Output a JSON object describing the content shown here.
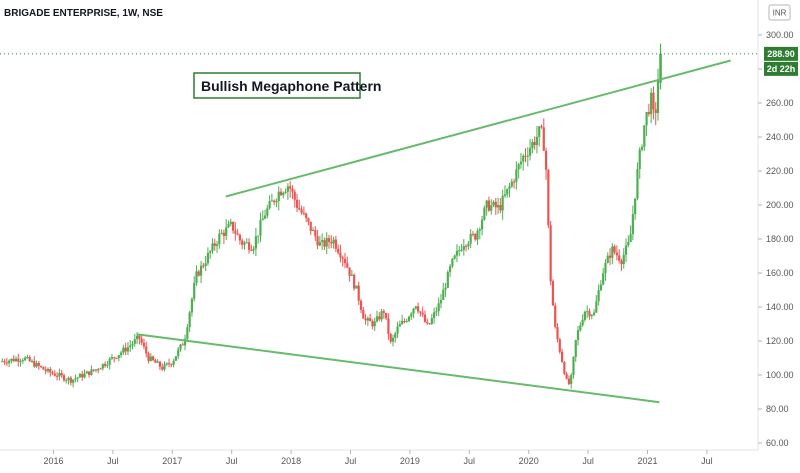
{
  "header": {
    "title": "BRIGADE ENTERPRISE, 1W, NSE"
  },
  "currency": "INR",
  "annotation": "Bullish Megaphone Pattern",
  "price_badge": {
    "price": "288.90",
    "countdown": "2d 22h"
  },
  "colors": {
    "up": "#26a69a",
    "up_candle": "#4caf50",
    "down_candle": "#ef5350",
    "trendline": "#66bb6a",
    "badge": "#2e7d32",
    "axis_text": "#555555"
  },
  "chart_data": {
    "type": "candlestick",
    "title": "BRIGADE ENTERPRISE, 1W, NSE",
    "y_axis": {
      "min": 60,
      "max": 300,
      "ticks": [
        60,
        80,
        100,
        120,
        140,
        160,
        180,
        200,
        220,
        240,
        260,
        280,
        300
      ],
      "position": "right"
    },
    "x_axis": {
      "start": 2015.55,
      "end": 2021.93,
      "ticks": [
        {
          "t": 2016.0,
          "label": "2016"
        },
        {
          "t": 2016.5,
          "label": "Jul"
        },
        {
          "t": 2017.0,
          "label": "2017"
        },
        {
          "t": 2017.5,
          "label": "Jul"
        },
        {
          "t": 2018.0,
          "label": "2018"
        },
        {
          "t": 2018.5,
          "label": "Jul"
        },
        {
          "t": 2019.0,
          "label": "2019"
        },
        {
          "t": 2019.5,
          "label": "Jul"
        },
        {
          "t": 2020.0,
          "label": "2020"
        },
        {
          "t": 2020.5,
          "label": "Jul"
        },
        {
          "t": 2021.0,
          "label": "2021"
        },
        {
          "t": 2021.5,
          "label": "Jul"
        }
      ]
    },
    "price_path": [
      [
        2015.55,
        108
      ],
      [
        2015.75,
        110
      ],
      [
        2015.95,
        102
      ],
      [
        2016.15,
        97
      ],
      [
        2016.35,
        103
      ],
      [
        2016.5,
        110
      ],
      [
        2016.62,
        116
      ],
      [
        2016.72,
        122
      ],
      [
        2016.8,
        110
      ],
      [
        2016.92,
        104
      ],
      [
        2017.0,
        108
      ],
      [
        2017.1,
        120
      ],
      [
        2017.2,
        158
      ],
      [
        2017.3,
        170
      ],
      [
        2017.4,
        182
      ],
      [
        2017.5,
        188
      ],
      [
        2017.58,
        178
      ],
      [
        2017.68,
        176
      ],
      [
        2017.78,
        195
      ],
      [
        2017.9,
        208
      ],
      [
        2017.98,
        212
      ],
      [
        2018.05,
        200
      ],
      [
        2018.15,
        188
      ],
      [
        2018.25,
        176
      ],
      [
        2018.35,
        180
      ],
      [
        2018.45,
        168
      ],
      [
        2018.55,
        150
      ],
      [
        2018.62,
        132
      ],
      [
        2018.7,
        130
      ],
      [
        2018.78,
        138
      ],
      [
        2018.84,
        118
      ],
      [
        2018.9,
        128
      ],
      [
        2018.97,
        133
      ],
      [
        2019.05,
        142
      ],
      [
        2019.15,
        128
      ],
      [
        2019.25,
        142
      ],
      [
        2019.35,
        165
      ],
      [
        2019.45,
        178
      ],
      [
        2019.55,
        182
      ],
      [
        2019.65,
        200
      ],
      [
        2019.75,
        198
      ],
      [
        2019.85,
        212
      ],
      [
        2019.95,
        228
      ],
      [
        2020.05,
        238
      ],
      [
        2020.1,
        244
      ],
      [
        2020.14,
        232
      ],
      [
        2020.18,
        160
      ],
      [
        2020.22,
        128
      ],
      [
        2020.27,
        112
      ],
      [
        2020.32,
        96
      ],
      [
        2020.35,
        94
      ],
      [
        2020.4,
        122
      ],
      [
        2020.47,
        138
      ],
      [
        2020.55,
        136
      ],
      [
        2020.62,
        160
      ],
      [
        2020.7,
        174
      ],
      [
        2020.78,
        168
      ],
      [
        2020.85,
        178
      ],
      [
        2020.92,
        222
      ],
      [
        2020.98,
        250
      ],
      [
        2021.03,
        262
      ],
      [
        2021.06,
        248
      ],
      [
        2021.09,
        275
      ],
      [
        2021.1,
        288.9
      ]
    ],
    "trendlines": [
      {
        "name": "upper",
        "from": [
          2017.45,
          205
        ],
        "to": [
          2021.7,
          285
        ]
      },
      {
        "name": "lower",
        "from": [
          2016.7,
          124
        ],
        "to": [
          2021.1,
          84
        ]
      }
    ],
    "current_price": 288.9,
    "grid": false
  }
}
